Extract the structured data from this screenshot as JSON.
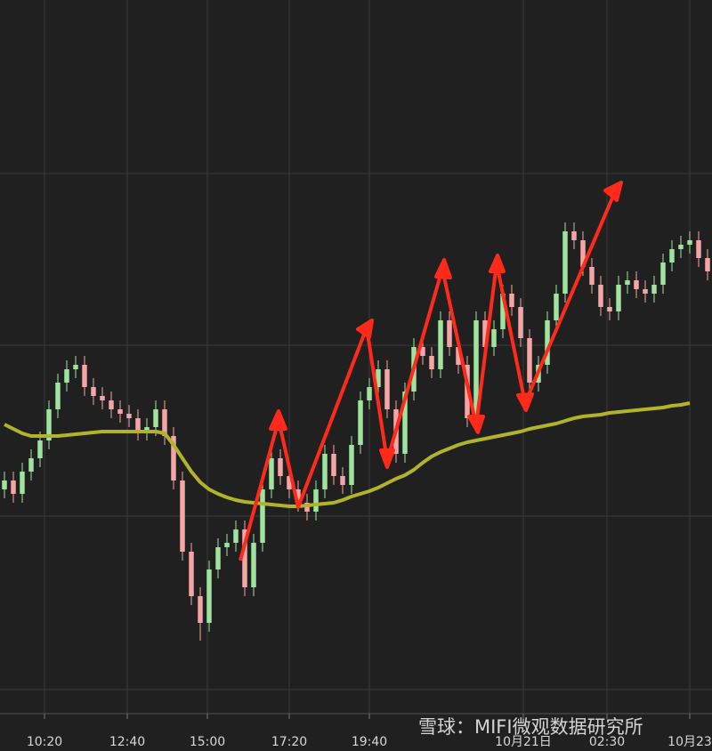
{
  "chart_data": {
    "type": "candlestick",
    "x": [
      0.5,
      1.5,
      2.5,
      3.5,
      4.5,
      5.5,
      6.5,
      7.5,
      8.5,
      9.5,
      10.5,
      11.5,
      12.5,
      13.5,
      14.5,
      15.5,
      16.5,
      17.5,
      18.5,
      19.5,
      20.5,
      21.5,
      22.5,
      23.5,
      24.5,
      25.5,
      26.5,
      27.5,
      28.5,
      29.5,
      30.5,
      31.5,
      32.5,
      33.5,
      34.5,
      35.5,
      36.5,
      37.5,
      38.5,
      39.5,
      40.5,
      41.5,
      42.5,
      43.5,
      44.5,
      45.5,
      46.5,
      47.5,
      48.5,
      49.5,
      50.5,
      51.5,
      52.5,
      53.5,
      54.5,
      55.5,
      56.5,
      57.5,
      58.5,
      59.5,
      60.5,
      61.5,
      62.5,
      63.5,
      64.5,
      65.5,
      66.5,
      67.5,
      68.5,
      69.5,
      70.5,
      71.5,
      72.5,
      73.5,
      74.5,
      75.5,
      76.5,
      77.5,
      78.5,
      79.5
    ],
    "open": [
      250,
      260,
      245,
      270,
      285,
      305,
      340,
      370,
      385,
      390,
      365,
      355,
      350,
      340,
      335,
      330,
      315,
      320,
      340,
      310,
      260,
      180,
      130,
      100,
      160,
      185,
      190,
      205,
      140,
      190,
      250,
      285,
      265,
      250,
      235,
      225,
      250,
      290,
      265,
      255,
      300,
      350,
      365,
      385,
      340,
      290,
      360,
      410,
      400,
      385,
      440,
      410,
      390,
      330,
      440,
      410,
      430,
      470,
      455,
      420,
      370,
      390,
      440,
      470,
      540,
      530,
      500,
      480,
      455,
      450,
      480,
      485,
      475,
      470,
      480,
      505,
      520,
      525,
      530,
      510
    ],
    "high": [
      270,
      270,
      280,
      295,
      315,
      350,
      380,
      395,
      400,
      400,
      375,
      365,
      360,
      350,
      345,
      340,
      330,
      350,
      350,
      320,
      270,
      190,
      140,
      170,
      195,
      200,
      215,
      215,
      200,
      260,
      295,
      295,
      275,
      260,
      245,
      260,
      300,
      300,
      275,
      310,
      360,
      375,
      395,
      395,
      350,
      370,
      420,
      420,
      410,
      450,
      450,
      420,
      400,
      450,
      450,
      440,
      480,
      480,
      465,
      430,
      400,
      450,
      480,
      550,
      550,
      540,
      510,
      490,
      465,
      490,
      495,
      495,
      485,
      490,
      515,
      530,
      535,
      540,
      540,
      520
    ],
    "low": [
      240,
      235,
      235,
      260,
      275,
      295,
      330,
      360,
      375,
      355,
      345,
      340,
      330,
      325,
      320,
      305,
      305,
      310,
      300,
      250,
      170,
      120,
      80,
      90,
      150,
      175,
      180,
      130,
      130,
      180,
      240,
      255,
      240,
      225,
      215,
      215,
      240,
      255,
      245,
      245,
      290,
      340,
      355,
      330,
      280,
      280,
      350,
      390,
      375,
      375,
      400,
      380,
      320,
      320,
      400,
      400,
      420,
      445,
      410,
      360,
      360,
      380,
      430,
      460,
      520,
      490,
      470,
      445,
      440,
      440,
      470,
      465,
      460,
      460,
      470,
      495,
      510,
      515,
      500,
      485
    ],
    "close": [
      260,
      245,
      270,
      285,
      305,
      340,
      370,
      385,
      390,
      365,
      355,
      350,
      340,
      335,
      330,
      315,
      320,
      340,
      310,
      260,
      180,
      130,
      100,
      160,
      185,
      190,
      205,
      140,
      190,
      250,
      285,
      265,
      250,
      235,
      225,
      250,
      290,
      265,
      255,
      300,
      350,
      365,
      385,
      340,
      290,
      360,
      410,
      400,
      385,
      440,
      410,
      390,
      330,
      440,
      410,
      430,
      470,
      455,
      420,
      370,
      390,
      440,
      470,
      540,
      530,
      500,
      480,
      455,
      450,
      480,
      485,
      475,
      470,
      480,
      505,
      520,
      525,
      530,
      510,
      495
    ],
    "ma": [
      323,
      318,
      313,
      310,
      310,
      310,
      310,
      311,
      312,
      313,
      314,
      315,
      315,
      315,
      315,
      315,
      315,
      315,
      313,
      300,
      285,
      270,
      258,
      250,
      245,
      241,
      238,
      236,
      235,
      234,
      233,
      232,
      231,
      231,
      232,
      233,
      234,
      235,
      238,
      242,
      245,
      248,
      252,
      257,
      262,
      266,
      272,
      280,
      287,
      292,
      296,
      300,
      303,
      305,
      307,
      309,
      311,
      313,
      315,
      318,
      320,
      322,
      324,
      327,
      330,
      332,
      333,
      334,
      336,
      337,
      338,
      339,
      340,
      341,
      342,
      344,
      345,
      347,
      null,
      null
    ],
    "up_color": "#9fe39f",
    "down_color": "#f4a6a6",
    "ma_color": "#b3b32a",
    "xlim": [
      0,
      80
    ],
    "ylim": [
      0,
      800
    ],
    "xticks": [
      {
        "value": 5,
        "label": "10:20"
      },
      {
        "value": 14.3,
        "label": "12:40"
      },
      {
        "value": 23.3,
        "label": "15:00"
      },
      {
        "value": 32.5,
        "label": "17:20"
      },
      {
        "value": 41.5,
        "label": "19:40"
      },
      {
        "value": 58.8,
        "label": "10月21日"
      },
      {
        "value": 68.2,
        "label": "02:30"
      },
      {
        "value": 77.5,
        "label": "10月23"
      }
    ],
    "watermark": "雪球：MIFI微观数据研究所"
  }
}
